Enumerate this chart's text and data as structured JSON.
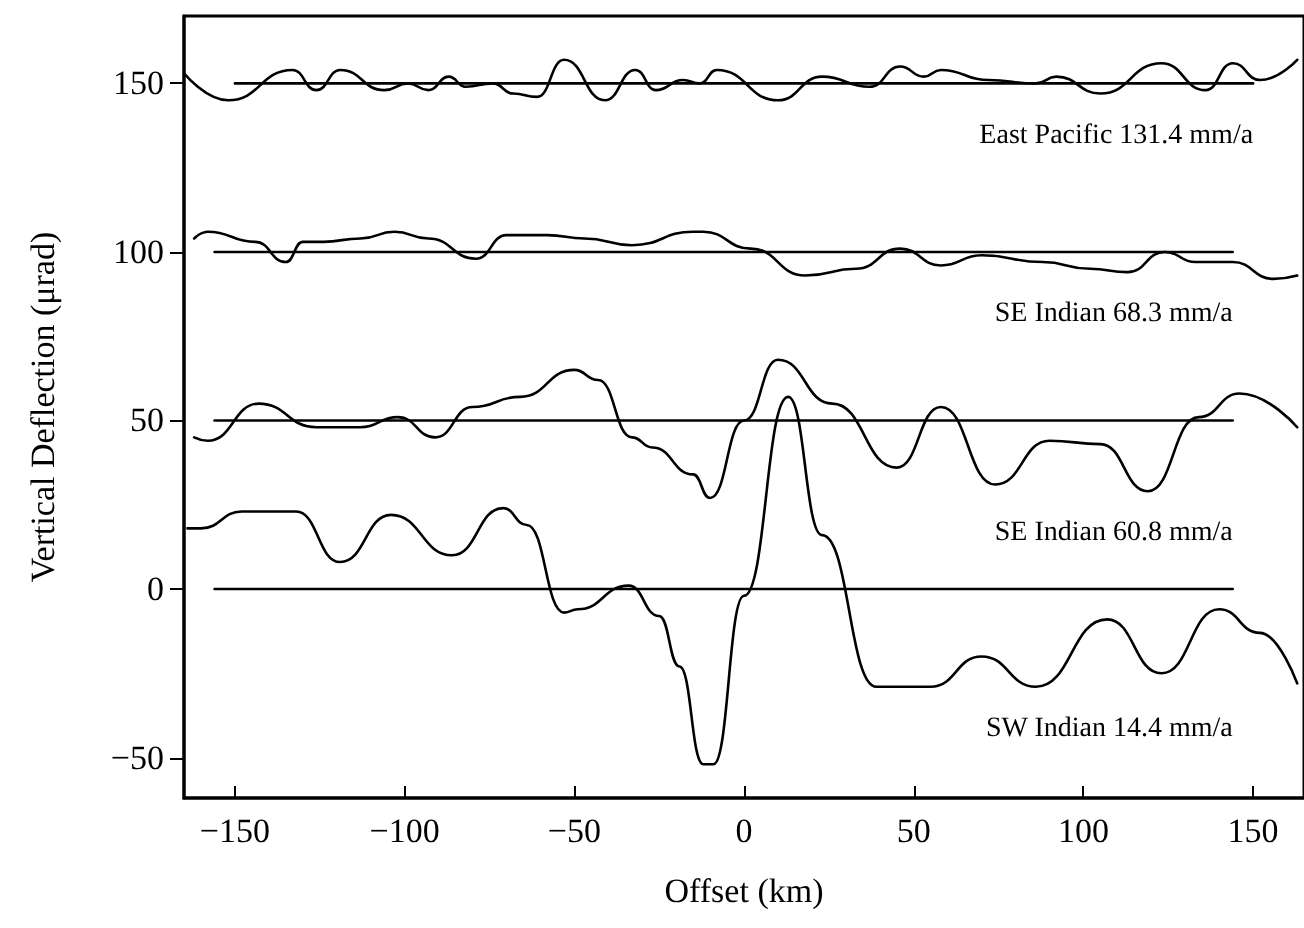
{
  "chart_data": {
    "type": "line",
    "xlabel": "Offset (km)",
    "ylabel": "Vertical Deflection (μrad)",
    "xlim": [
      -165,
      165
    ],
    "ylim": [
      -62,
      170
    ],
    "xticks": [
      -150,
      -100,
      -50,
      0,
      50,
      100,
      150
    ],
    "yticks": [
      -50,
      0,
      50,
      100,
      150
    ],
    "grid": false,
    "legend": false,
    "marker": "none",
    "line_style": "solid",
    "series": [
      {
        "name": "East Pacific 131.4 mm/a",
        "color": "#000000",
        "x": [
          -165,
          -152,
          -133,
          -126,
          -119,
          -106,
          -99,
          -93,
          -87,
          -82,
          -74,
          -68,
          -61,
          -53,
          -41,
          -32,
          -26,
          -18,
          -13,
          -8,
          10,
          23,
          37,
          46,
          53,
          58,
          72,
          86,
          92,
          105,
          123,
          136,
          144,
          152,
          163
        ],
        "values": [
          153,
          145,
          154,
          148,
          154,
          148,
          150,
          148,
          152,
          149,
          150,
          147,
          146,
          157,
          145,
          154,
          148,
          151,
          150,
          154,
          145,
          152,
          149,
          155,
          152,
          154,
          151,
          150,
          152,
          147,
          156,
          148,
          156,
          151,
          157
        ]
      },
      {
        "name": "SE Indian 68.3 mm/a",
        "color": "#000000",
        "x": [
          -162,
          -158,
          -144,
          -135,
          -130,
          -124,
          -113,
          -103,
          -93,
          -79,
          -70,
          -58,
          -47,
          -33,
          -15,
          -12,
          2,
          18,
          33,
          46,
          58,
          70,
          88,
          102,
          113,
          124,
          133,
          144,
          156,
          163
        ],
        "values": [
          104,
          106,
          103,
          97,
          103,
          103,
          104,
          106,
          104,
          98,
          105,
          105,
          104,
          102,
          106,
          106,
          101,
          93,
          95,
          101,
          96,
          99,
          97,
          95,
          94,
          100,
          97,
          97,
          92,
          93
        ]
      },
      {
        "name": "SE Indian 60.8 mm/a",
        "color": "#000000",
        "x": [
          -162,
          -158,
          -143,
          -126,
          -113,
          -102,
          -91,
          -80,
          -66,
          -50,
          -43,
          -33,
          -27,
          -15,
          -10,
          0,
          10,
          26,
          45,
          58,
          74,
          90,
          105,
          119,
          134,
          146,
          163
        ],
        "values": [
          45,
          44,
          55,
          48,
          48,
          51,
          45,
          54,
          57,
          65,
          62,
          45,
          42,
          34,
          27,
          50,
          68,
          55,
          36,
          54,
          31,
          44,
          43,
          29,
          51,
          58,
          48
        ]
      },
      {
        "name": "SW Indian 14.4 mm/a",
        "color": "#000000",
        "x": [
          -164,
          -160,
          -148,
          -132,
          -119,
          -104,
          -86,
          -71,
          -64,
          -53,
          -49,
          -34,
          -25,
          -19,
          -12,
          -9,
          0,
          13,
          23,
          39,
          55,
          70,
          86,
          107,
          123,
          140,
          152,
          163
        ],
        "values": [
          18,
          18,
          23,
          23,
          8,
          22,
          10,
          24,
          19,
          -7,
          -6,
          1,
          -8,
          -23,
          -52,
          -52,
          -2,
          57,
          16,
          -29,
          -29,
          -20,
          -29,
          -9,
          -25,
          -6,
          -13,
          -28
        ]
      },
      {
        "color": "#000000",
        "x": [
          -150,
          150
        ],
        "values": [
          150,
          150
        ]
      },
      {
        "color": "#000000",
        "x": [
          -156,
          144
        ],
        "values": [
          100,
          100
        ]
      },
      {
        "color": "#000000",
        "x": [
          -156,
          144
        ],
        "values": [
          50,
          50
        ]
      },
      {
        "color": "#000000",
        "x": [
          -156,
          144
        ],
        "values": [
          0,
          0
        ]
      }
    ]
  }
}
